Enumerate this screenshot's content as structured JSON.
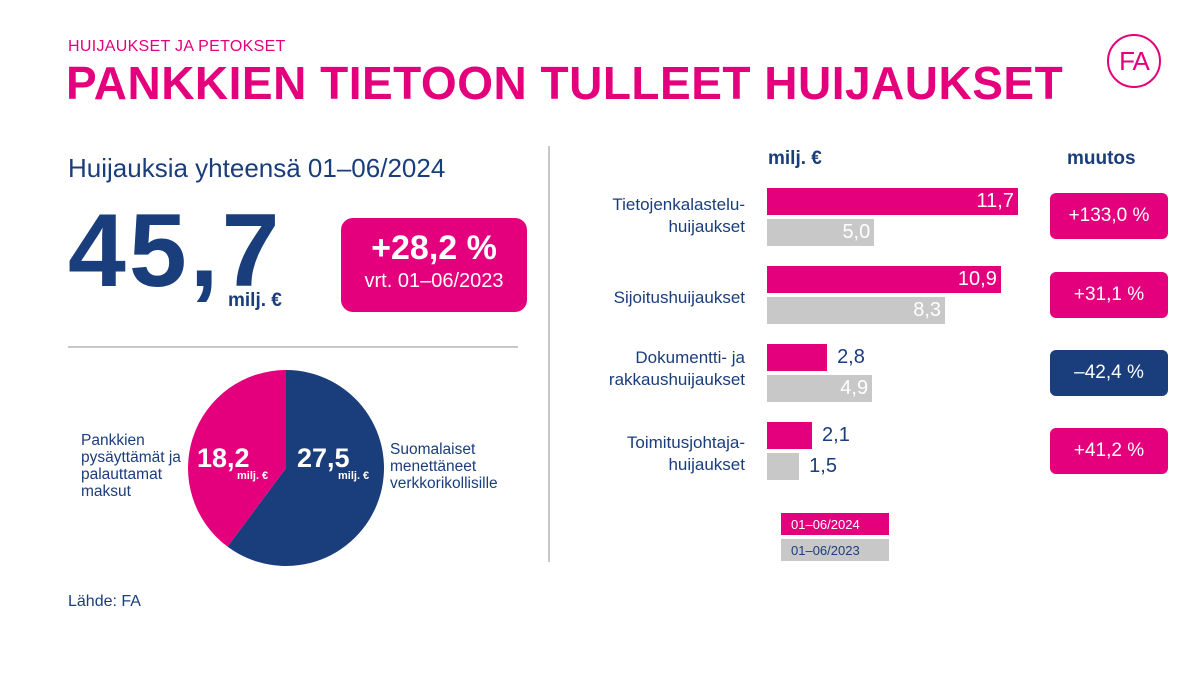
{
  "header": {
    "kicker": "HUIJAUKSET JA PETOKSET",
    "title": "PANKKIEN TIETOON TULLEET HUIJAUKSET",
    "logo_text": "FA"
  },
  "summary": {
    "label": "Huijauksia yhteensä 01–06/2024",
    "total": "45,7",
    "unit": "milj. €",
    "change_main": "+28,2 %",
    "change_sub": "vrt. 01–06/2023"
  },
  "source": "Lähde: FA",
  "colors": {
    "magenta": "#e4007c",
    "navy": "#1a3d7c",
    "gray": "#c8c8c8"
  },
  "chart_data": [
    {
      "type": "pie",
      "unit": "milj. €",
      "slices": [
        {
          "label": "Pankkien pysäyttämät ja palauttamat maksut",
          "value": 18.2,
          "display": "18,2",
          "color": "#e4007c"
        },
        {
          "label": "Suomalaiset menettäneet verkkorikollisille",
          "value": 27.5,
          "display": "27,5",
          "color": "#1a3d7c"
        }
      ]
    },
    {
      "type": "bar",
      "orientation": "horizontal",
      "unit_header": "milj. €",
      "change_header": "muutos",
      "categories": [
        "Tietojenkalastelu-\nhuijaukset",
        "Sijoitushuijaukset",
        "Dokumentti- ja\nrakkaushuijaukset",
        "Toimitusjohtaja-\nhuijaukset"
      ],
      "series": [
        {
          "name": "01–06/2024",
          "color": "#e4007c",
          "values": [
            11.7,
            10.9,
            2.8,
            2.1
          ],
          "labels": [
            "11,7",
            "10,9",
            "2,8",
            "2,1"
          ]
        },
        {
          "name": "01–06/2023",
          "color": "#c8c8c8",
          "values": [
            5.0,
            8.3,
            4.9,
            1.5
          ],
          "labels": [
            "5,0",
            "8,3",
            "4,9",
            "1,5"
          ]
        }
      ],
      "changes": [
        {
          "text": "+133,0 %",
          "color": "#e4007c"
        },
        {
          "text": "+31,1 %",
          "color": "#e4007c"
        },
        {
          "text": "–42,4 %",
          "color": "#1a3d7c"
        },
        {
          "text": "+41,2 %",
          "color": "#e4007c"
        }
      ]
    }
  ]
}
